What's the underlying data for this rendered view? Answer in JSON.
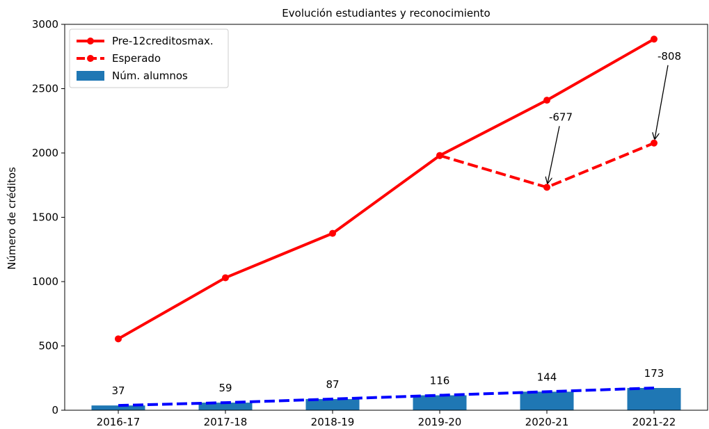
{
  "chart_data": {
    "type": "bar",
    "title": "Evolución estudiantes y reconocimiento",
    "xlabel": "",
    "ylabel": "Número de créditos",
    "categories": [
      "2016-17",
      "2017-18",
      "2018-19",
      "2019-20",
      "2020-21",
      "2021-22"
    ],
    "ylim": [
      0,
      3000
    ],
    "yticks": [
      0,
      500,
      1000,
      1500,
      2000,
      2500,
      3000
    ],
    "grid": false,
    "legend_position": "top-left",
    "series": [
      {
        "name": "Pre-12creditosmax.",
        "type": "line",
        "style": "solid",
        "color": "#ff0000",
        "values": [
          555,
          1030,
          1375,
          1980,
          2410,
          2885
        ]
      },
      {
        "name": "Esperado",
        "type": "line",
        "style": "dashed",
        "color": "#ff0000",
        "values": [
          null,
          null,
          null,
          1980,
          1733,
          2077
        ]
      },
      {
        "name": "Núm. alumnos",
        "type": "bar",
        "color": "#1f77b4",
        "values": [
          37,
          59,
          87,
          116,
          144,
          173
        ],
        "data_labels": [
          "37",
          "59",
          "87",
          "116",
          "144",
          "173"
        ]
      },
      {
        "name": "",
        "type": "line",
        "style": "dashed",
        "color": "#0000ff",
        "values": [
          37,
          59,
          87,
          116,
          144,
          173
        ]
      }
    ],
    "annotations": [
      {
        "text": "-677",
        "category": "2020-21",
        "points_to": 1733
      },
      {
        "text": "-808",
        "category": "2021-22",
        "points_to": 2077
      }
    ]
  }
}
